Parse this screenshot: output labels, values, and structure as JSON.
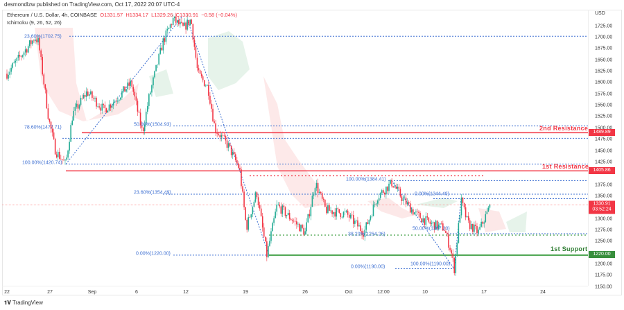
{
  "header": {
    "published": "desmondlzw published on TradingView.com, Oct 17, 2022 20:07 UTC-4"
  },
  "legend": {
    "symbol": "Ethereum / U.S. Dollar, 4h, COINBASE",
    "open": "O1331.57",
    "high": "H1334.17",
    "low": "L1329.26",
    "close": "C1330.91",
    "change": "−0.58 (−0.04%)",
    "indicator": "Ichimoku (9, 26, 52, 26)"
  },
  "price_axis": {
    "currency": "USD",
    "ticks": [
      "1725.00",
      "1700.00",
      "1675.00",
      "1650.00",
      "1625.00",
      "1600.00",
      "1575.00",
      "1550.00",
      "1525.00",
      "1500.00",
      "1475.00",
      "1450.00",
      "1425.00",
      "1375.00",
      "1350.00",
      "1300.00",
      "1275.00",
      "1250.00",
      "1200.00",
      "1175.00",
      "1150.00"
    ],
    "tags": {
      "second_resistance": "1489.89",
      "first_resistance": "1405.86",
      "last_price": "1330.91",
      "countdown": "03:52:24",
      "first_support": "1220.00"
    }
  },
  "time_axis": {
    "ticks": [
      "22",
      "27",
      "Sep",
      "6",
      "12",
      "19",
      "26",
      "Oct",
      "12:00",
      "10",
      "17",
      "24"
    ]
  },
  "annotations": {
    "second_resistance": "2nd Resistance",
    "first_resistance": "1st Resistance",
    "first_support": "1st Support",
    "fib": [
      "23.60%(1702.75)",
      "78.60%(1477.71)",
      "100.00%(1420.74)",
      "50.00%(1504.93)",
      "23.60%(1354.49)",
      "0.00%(1220.00)",
      "100.00%(1384.41)",
      "0.00%(1344.40)",
      "38.20%(1264.26)",
      "50.00%(1267.20)",
      "100.00%(1190.00)",
      "0.00%(1190.00)"
    ]
  },
  "colors": {
    "up": "#22ab94",
    "down": "#f23645",
    "resistance": "#f23645",
    "support": "#43a047",
    "fib": "#3d6fd1"
  },
  "footer": {
    "brand": "TradingView"
  },
  "chart_data": {
    "type": "candlestick",
    "symbol": "ETHUSD",
    "interval": "4h",
    "ylim": [
      1140,
      1745
    ],
    "x_unit": "days since Aug 22",
    "path": [
      [
        0,
        1620
      ],
      [
        3.3,
        1700
      ],
      [
        3.7,
        1690
      ],
      [
        4.9,
        1520
      ],
      [
        5.7,
        1450
      ],
      [
        6.9,
        1420
      ],
      [
        7.7,
        1530
      ],
      [
        9.4,
        1580
      ],
      [
        11.4,
        1540
      ],
      [
        12.6,
        1560
      ],
      [
        14.6,
        1600
      ],
      [
        15.9,
        1490
      ],
      [
        16.7,
        1570
      ],
      [
        18.3,
        1690
      ],
      [
        19.5,
        1740
      ],
      [
        20.7,
        1720
      ],
      [
        21.6,
        1740
      ],
      [
        22.4,
        1620
      ],
      [
        23.6,
        1590
      ],
      [
        24.4,
        1500
      ],
      [
        26.0,
        1460
      ],
      [
        27.3,
        1410
      ],
      [
        28.1,
        1280
      ],
      [
        29.3,
        1360
      ],
      [
        30.5,
        1220
      ],
      [
        31.7,
        1330
      ],
      [
        33.4,
        1300
      ],
      [
        35.0,
        1270
      ],
      [
        36.2,
        1380
      ],
      [
        37.4,
        1320
      ],
      [
        39.9,
        1310
      ],
      [
        41.9,
        1270
      ],
      [
        43.5,
        1350
      ],
      [
        45.2,
        1380
      ],
      [
        46.4,
        1345
      ],
      [
        48.0,
        1310
      ],
      [
        49.6,
        1290
      ],
      [
        51.3,
        1280
      ],
      [
        52.1,
        1230
      ],
      [
        52.5,
        1190
      ],
      [
        53.3,
        1340
      ],
      [
        54.1,
        1290
      ],
      [
        55.3,
        1270
      ],
      [
        56.8,
        1332
      ]
    ],
    "levels": {
      "second_resistance": 1489.89,
      "first_resistance": 1405.86,
      "first_support": 1220.0,
      "last": 1330.91
    }
  }
}
